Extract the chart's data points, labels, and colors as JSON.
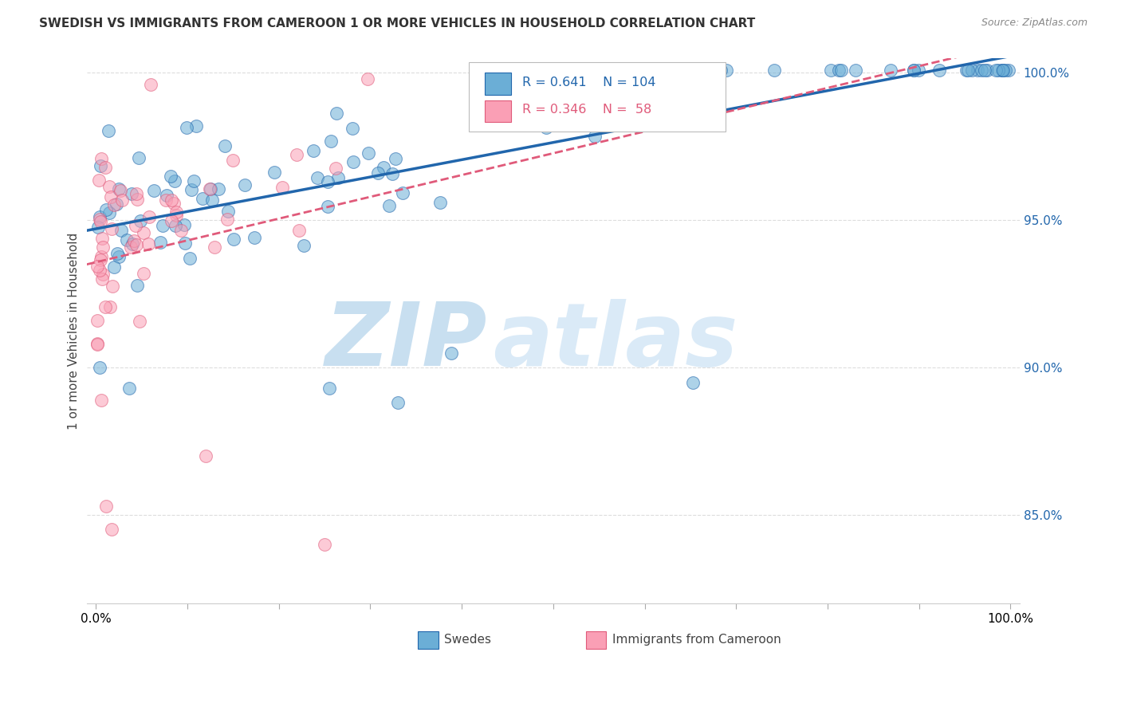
{
  "title": "SWEDISH VS IMMIGRANTS FROM CAMEROON 1 OR MORE VEHICLES IN HOUSEHOLD CORRELATION CHART",
  "source": "Source: ZipAtlas.com",
  "ylabel": "1 or more Vehicles in Household",
  "xlim": [
    0.0,
    1.0
  ],
  "ylim": [
    0.82,
    1.005
  ],
  "yticks": [
    0.85,
    0.9,
    0.95,
    1.0
  ],
  "ytick_labels": [
    "85.0%",
    "90.0%",
    "95.0%",
    "100.0%"
  ],
  "legend_labels": [
    "Swedes",
    "Immigrants from Cameroon"
  ],
  "blue_color": "#6baed6",
  "pink_color": "#fa9fb5",
  "blue_line_color": "#2166ac",
  "pink_line_color": "#e05a7a",
  "blue_R": 0.641,
  "blue_N": 104,
  "pink_R": 0.346,
  "pink_N": 58,
  "background_color": "#ffffff",
  "grid_color": "#dddddd",
  "watermark_zip": "ZIP",
  "watermark_atlas": "atlas",
  "watermark_color": "#c8dff0"
}
